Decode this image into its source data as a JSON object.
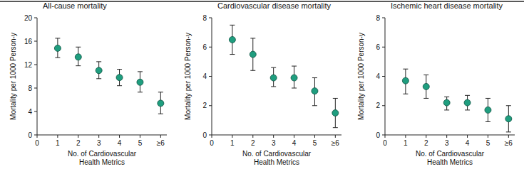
{
  "chart_data": [
    {
      "type": "scatter",
      "title": "All-cause mortality",
      "x_label": "No. of Cardiovascular\nHealth Metrics",
      "y_label": "Mortality per 1000 Person-y",
      "x": [
        1,
        2,
        3,
        4,
        5,
        6
      ],
      "xlim": [
        0,
        6.3
      ],
      "xticks": [
        0,
        1,
        2,
        3,
        4,
        5,
        {
          "value": 6,
          "label": "≥6"
        }
      ],
      "ylim": [
        0,
        20
      ],
      "yticks": [
        0,
        4,
        8,
        12,
        16,
        20
      ],
      "grid": false,
      "marker": "circle",
      "series": [
        {
          "color": "#1f9e7f",
          "values": [
            14.8,
            13.3,
            11.0,
            9.8,
            9.0,
            5.4
          ],
          "lower": [
            13.2,
            11.8,
            9.6,
            8.4,
            7.3,
            3.6
          ],
          "upper": [
            16.5,
            15.0,
            12.5,
            11.2,
            10.8,
            7.3
          ]
        }
      ]
    },
    {
      "type": "scatter",
      "title": "Cardiovascular disease mortality",
      "x_label": "No. of Cardiovascular\nHealth Metrics",
      "y_label": "Mortality per 1000 Person-y",
      "x": [
        1,
        2,
        3,
        4,
        5,
        6
      ],
      "xlim": [
        0,
        6.3
      ],
      "xticks": [
        0,
        1,
        2,
        3,
        4,
        5,
        {
          "value": 6,
          "label": "≥6"
        }
      ],
      "ylim": [
        0,
        8
      ],
      "yticks": [
        0,
        2,
        4,
        6,
        8
      ],
      "grid": false,
      "marker": "circle",
      "series": [
        {
          "color": "#1f9e7f",
          "values": [
            6.5,
            5.5,
            3.9,
            3.9,
            3.0,
            1.5
          ],
          "lower": [
            5.5,
            4.4,
            3.3,
            3.2,
            2.0,
            0.5
          ],
          "upper": [
            7.5,
            6.6,
            4.6,
            4.7,
            3.9,
            2.5
          ]
        }
      ]
    },
    {
      "type": "scatter",
      "title": "Ischemic heart disease mortality",
      "x_label": "No. of Cardiovascular\nHealth Metrics",
      "y_label": "Mortality per 1000 Person-y",
      "x": [
        1,
        2,
        3,
        4,
        5,
        6
      ],
      "xlim": [
        0,
        6.3
      ],
      "xticks": [
        0,
        1,
        2,
        3,
        4,
        5,
        {
          "value": 6,
          "label": "≥6"
        }
      ],
      "ylim": [
        0,
        8
      ],
      "yticks": [
        0,
        2,
        4,
        6,
        8
      ],
      "grid": false,
      "marker": "circle",
      "series": [
        {
          "color": "#1f9e7f",
          "values": [
            3.7,
            3.3,
            2.2,
            2.2,
            1.7,
            1.1
          ],
          "lower": [
            2.8,
            2.5,
            1.7,
            1.7,
            0.9,
            0.2
          ],
          "upper": [
            4.5,
            4.1,
            2.6,
            2.7,
            2.5,
            2.0
          ]
        }
      ]
    }
  ]
}
